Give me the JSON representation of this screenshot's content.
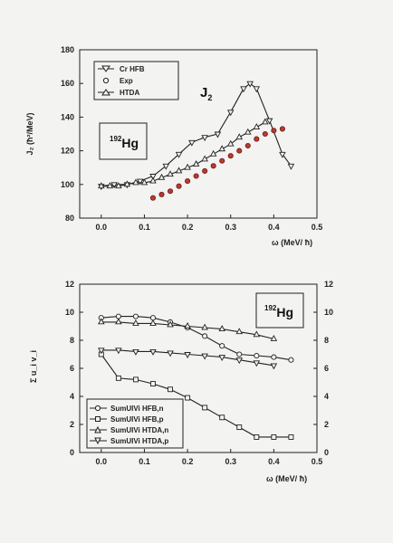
{
  "chart_data": [
    {
      "type": "line",
      "annotation": "J",
      "annotation_sub": "2",
      "nucleus_label": {
        "mass": "192",
        "element": "Hg"
      },
      "xlabel": "ω (MeV/ ħ)",
      "ylabel": "J₂ (ħ²/MeV)",
      "xlim": [
        -0.05,
        0.5
      ],
      "ylim": [
        80,
        180
      ],
      "xticks": [
        "0.0",
        "0.1",
        "0.2",
        "0.3",
        "0.4",
        "0.5"
      ],
      "yticks": [
        "80",
        "100",
        "120",
        "140",
        "160",
        "180"
      ],
      "legend_position": "top-left",
      "series": [
        {
          "name": "Cr HFB",
          "marker": "triangle-down",
          "color": "#222222",
          "x": [
            0.0,
            0.03,
            0.06,
            0.09,
            0.12,
            0.15,
            0.18,
            0.21,
            0.24,
            0.27,
            0.3,
            0.33,
            0.345,
            0.36,
            0.39,
            0.42,
            0.44
          ],
          "y": [
            99,
            100,
            100,
            102,
            105,
            111,
            118,
            125,
            128,
            130,
            143,
            157,
            160,
            157,
            138,
            118,
            111
          ]
        },
        {
          "name": "Exp",
          "marker": "circle",
          "color": "#c0392b",
          "filled": true,
          "x": [
            0.12,
            0.14,
            0.16,
            0.18,
            0.2,
            0.22,
            0.24,
            0.26,
            0.28,
            0.3,
            0.32,
            0.34,
            0.36,
            0.38,
            0.4,
            0.42
          ],
          "y": [
            92,
            94,
            96,
            99,
            102,
            105,
            108,
            111,
            114,
            117,
            120,
            123,
            127,
            130,
            132,
            133
          ]
        },
        {
          "name": "HTDA",
          "marker": "triangle-up",
          "color": "#222222",
          "x": [
            0.0,
            0.02,
            0.04,
            0.06,
            0.08,
            0.1,
            0.12,
            0.14,
            0.16,
            0.18,
            0.2,
            0.22,
            0.24,
            0.26,
            0.28,
            0.3,
            0.32,
            0.34,
            0.36,
            0.38
          ],
          "y": [
            99,
            99,
            99,
            100,
            101,
            101,
            102,
            104,
            106,
            108,
            110,
            112,
            115,
            118,
            121,
            124,
            128,
            131,
            134,
            137
          ]
        }
      ]
    },
    {
      "type": "line",
      "nucleus_label": {
        "mass": "192",
        "element": "Hg"
      },
      "xlabel": "ω (MeV/ ħ)",
      "ylabel": "Σ u_i v_i",
      "xlim": [
        -0.05,
        0.5
      ],
      "ylim": [
        0,
        12
      ],
      "xticks": [
        "0.0",
        "0.1",
        "0.2",
        "0.3",
        "0.4",
        "0.5"
      ],
      "yticks": [
        "0",
        "2",
        "4",
        "6",
        "8",
        "10",
        "12"
      ],
      "right_yticks": [
        "0",
        "2",
        "4",
        "6",
        "8",
        "10",
        "12"
      ],
      "legend_position": "bottom-left",
      "series": [
        {
          "name": "SumUIVi HFB,n",
          "marker": "circle",
          "x": [
            0.0,
            0.04,
            0.08,
            0.12,
            0.16,
            0.2,
            0.24,
            0.28,
            0.32,
            0.36,
            0.4,
            0.44
          ],
          "y": [
            9.6,
            9.7,
            9.7,
            9.6,
            9.3,
            8.9,
            8.3,
            7.6,
            7.0,
            6.9,
            6.8,
            6.6
          ]
        },
        {
          "name": "SumUIVi HFB,p",
          "marker": "square",
          "x": [
            0.0,
            0.04,
            0.08,
            0.12,
            0.16,
            0.2,
            0.24,
            0.28,
            0.32,
            0.36,
            0.4,
            0.44
          ],
          "y": [
            7.0,
            5.3,
            5.2,
            4.9,
            4.5,
            3.9,
            3.2,
            2.5,
            1.8,
            1.1,
            1.1,
            1.1
          ]
        },
        {
          "name": "SumUIVi HTDA,n",
          "marker": "triangle-up",
          "x": [
            0.0,
            0.04,
            0.08,
            0.12,
            0.16,
            0.2,
            0.24,
            0.28,
            0.32,
            0.36,
            0.4
          ],
          "y": [
            9.3,
            9.3,
            9.2,
            9.2,
            9.1,
            9.0,
            8.9,
            8.8,
            8.6,
            8.4,
            8.1
          ]
        },
        {
          "name": "SumUIVi HTDA,p",
          "marker": "triangle-down",
          "x": [
            0.0,
            0.04,
            0.08,
            0.12,
            0.16,
            0.2,
            0.24,
            0.28,
            0.32,
            0.36,
            0.4
          ],
          "y": [
            7.3,
            7.3,
            7.2,
            7.2,
            7.1,
            7.0,
            6.9,
            6.8,
            6.6,
            6.4,
            6.2
          ]
        }
      ]
    }
  ]
}
